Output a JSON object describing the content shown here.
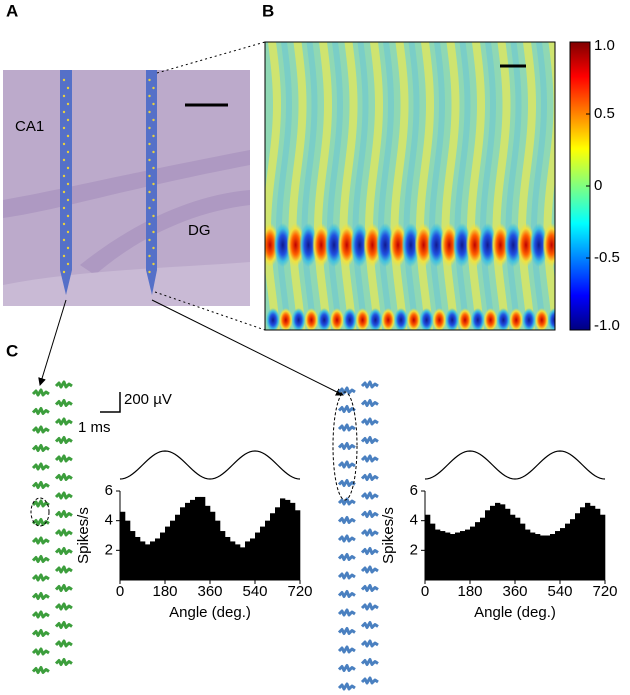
{
  "panels": {
    "a": "A",
    "b": "B",
    "c": "C"
  },
  "histology": {
    "labels": [
      "CA1",
      "DG"
    ]
  },
  "colorbar": {
    "lim": [
      -1,
      1
    ],
    "ticks": [
      {
        "value": 1,
        "label": "1.0"
      },
      0.5,
      0,
      -0.5,
      {
        "value": -1,
        "label": "-1.0"
      }
    ]
  },
  "scalebar": {
    "voltage": "200 µV",
    "time": "1 ms"
  },
  "chart_data": [
    {
      "type": "histogram",
      "color": "#000000",
      "xlabel": "Angle (deg.)",
      "ylabel": "Spikes/s",
      "bins": [
        0,
        20,
        40,
        60,
        80,
        100,
        120,
        140,
        160,
        180,
        200,
        220,
        240,
        260,
        280,
        300,
        320,
        340,
        360,
        380,
        400,
        420,
        440,
        460,
        480,
        500,
        520,
        540,
        560,
        580,
        600,
        620,
        640,
        660,
        680,
        700,
        720
      ],
      "values": [
        4.6,
        4.0,
        3.3,
        2.9,
        2.6,
        2.4,
        2.6,
        2.8,
        3.2,
        3.6,
        4.0,
        4.4,
        4.9,
        5.2,
        5.4,
        5.6,
        5.6,
        5.0,
        4.6,
        4.0,
        3.3,
        2.9,
        2.6,
        2.4,
        2.2,
        2.6,
        2.8,
        3.2,
        3.6,
        4.0,
        4.5,
        4.9,
        5.5,
        5.4,
        5.2,
        4.7
      ],
      "xlim": [
        0,
        720
      ],
      "xticks": [
        0,
        180,
        360,
        540,
        720
      ],
      "ylim": [
        0,
        6
      ],
      "yticks": [
        2,
        4,
        6
      ]
    },
    {
      "type": "histogram",
      "color": "#000000",
      "xlabel": "Angle (deg.)",
      "ylabel": "Spikes/s",
      "bins": [
        0,
        20,
        40,
        60,
        80,
        100,
        120,
        140,
        160,
        180,
        200,
        220,
        240,
        260,
        280,
        300,
        320,
        340,
        360,
        380,
        400,
        420,
        440,
        460,
        480,
        500,
        520,
        540,
        560,
        580,
        600,
        620,
        640,
        660,
        680,
        700,
        720
      ],
      "values": [
        4.4,
        3.8,
        3.4,
        3.3,
        3.2,
        3.1,
        3.2,
        3.3,
        3.4,
        3.6,
        3.9,
        4.2,
        4.7,
        5.0,
        5.2,
        5.1,
        4.8,
        4.4,
        4.2,
        3.8,
        3.4,
        3.2,
        3.1,
        3.0,
        3.0,
        3.1,
        3.3,
        3.5,
        3.8,
        4.1,
        4.5,
        4.9,
        5.2,
        5.0,
        4.8,
        4.4
      ],
      "xlim": [
        0,
        720
      ],
      "xticks": [
        0,
        180,
        360,
        540,
        720
      ],
      "ylim": [
        0,
        6
      ],
      "yticks": [
        2,
        4,
        6
      ]
    }
  ]
}
